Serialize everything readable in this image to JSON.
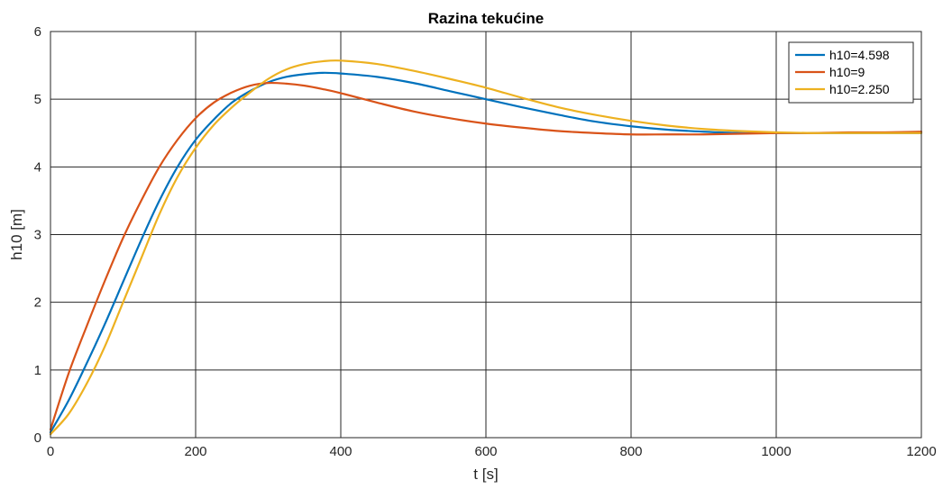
{
  "chart_data": {
    "type": "line",
    "title": "Razina tekućine",
    "xlabel": "t [s]",
    "ylabel": "h10 [m]",
    "xlim": [
      0,
      1200
    ],
    "ylim": [
      0,
      6
    ],
    "xticks": [
      0,
      200,
      400,
      600,
      800,
      1000,
      1200
    ],
    "yticks": [
      0,
      1,
      2,
      3,
      4,
      5,
      6
    ],
    "xtick_labels": [
      "0",
      "200",
      "400",
      "600",
      "800",
      "1000",
      "1200"
    ],
    "ytick_labels": [
      "0",
      "1",
      "2",
      "3",
      "4",
      "5",
      "6"
    ],
    "grid": true,
    "legend_position": "top-right",
    "x": [
      0,
      25,
      50,
      75,
      100,
      125,
      150,
      175,
      200,
      225,
      250,
      275,
      300,
      325,
      350,
      375,
      400,
      450,
      500,
      550,
      600,
      650,
      700,
      750,
      800,
      850,
      900,
      950,
      1000,
      1050,
      1100,
      1150,
      1200
    ],
    "series": [
      {
        "name": "h10=4.598",
        "color": "#0072BD",
        "values": [
          0.08,
          0.55,
          1.1,
          1.68,
          2.3,
          2.92,
          3.5,
          4.0,
          4.4,
          4.7,
          4.95,
          5.12,
          5.25,
          5.33,
          5.37,
          5.39,
          5.38,
          5.33,
          5.24,
          5.12,
          5.0,
          4.88,
          4.77,
          4.67,
          4.6,
          4.55,
          4.52,
          4.5,
          4.5,
          4.5,
          4.5,
          4.5,
          4.5
        ]
      },
      {
        "name": "h10=9",
        "color": "#D95319",
        "values": [
          0.12,
          0.95,
          1.65,
          2.32,
          2.95,
          3.5,
          4.0,
          4.4,
          4.72,
          4.95,
          5.1,
          5.2,
          5.24,
          5.23,
          5.2,
          5.15,
          5.09,
          4.95,
          4.82,
          4.72,
          4.64,
          4.58,
          4.53,
          4.5,
          4.48,
          4.48,
          4.48,
          4.49,
          4.5,
          4.5,
          4.51,
          4.51,
          4.52
        ]
      },
      {
        "name": "h10=2.250",
        "color": "#EDB120",
        "values": [
          0.05,
          0.35,
          0.8,
          1.35,
          2.0,
          2.65,
          3.3,
          3.85,
          4.28,
          4.62,
          4.88,
          5.1,
          5.3,
          5.44,
          5.52,
          5.56,
          5.57,
          5.52,
          5.42,
          5.3,
          5.17,
          5.02,
          4.88,
          4.77,
          4.68,
          4.61,
          4.56,
          4.53,
          4.51,
          4.5,
          4.5,
          4.5,
          4.5
        ]
      }
    ]
  }
}
